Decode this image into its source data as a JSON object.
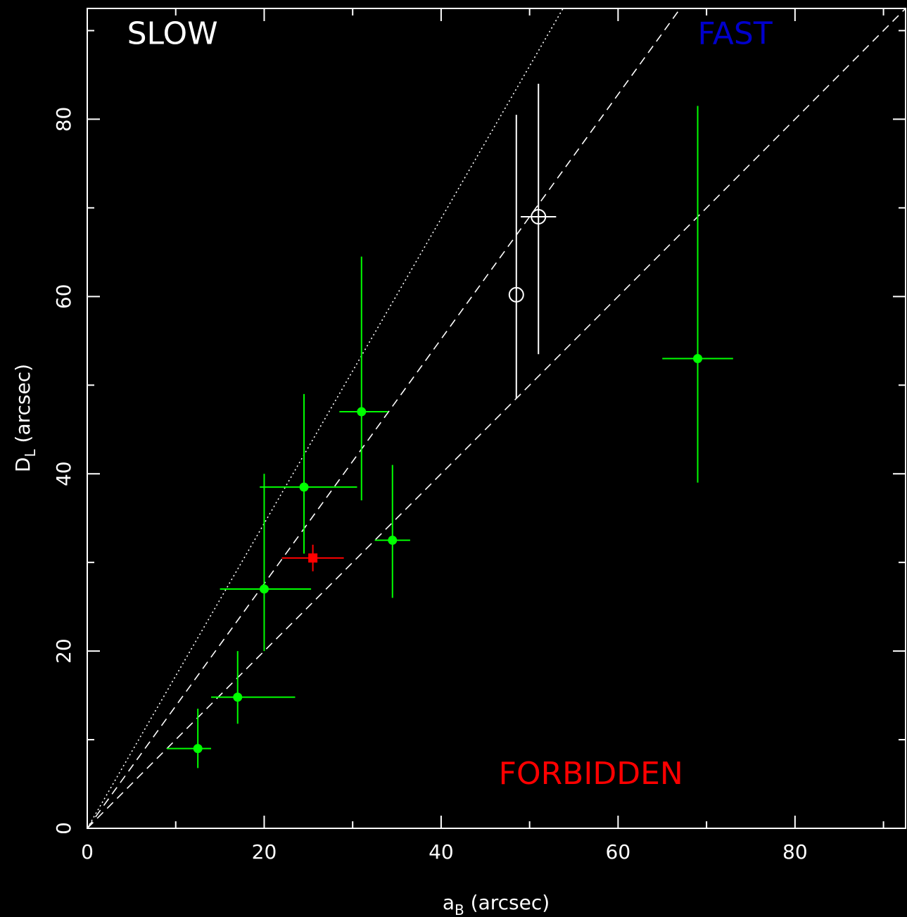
{
  "chart_data": {
    "type": "scatter",
    "xlabel": "a",
    "xlabel_sub": "B",
    "xlabel_unit": "(arcsec)",
    "ylabel": "D",
    "ylabel_sub": "L",
    "ylabel_unit": "(arcsec)",
    "xlim": [
      0,
      92.5
    ],
    "ylim": [
      0,
      92.5
    ],
    "x_ticks": [
      "0",
      "20",
      "40",
      "60",
      "80"
    ],
    "y_ticks": [
      "0",
      "20",
      "40",
      "60",
      "80"
    ],
    "background": "#000000",
    "annotations": [
      {
        "text": "SLOW",
        "x": 4.5,
        "y": 88.5,
        "color": "#ffffff"
      },
      {
        "text": "FAST",
        "x": 69.0,
        "y": 88.5,
        "color": "#0000cc"
      },
      {
        "text": "FORBIDDEN",
        "x": 46.5,
        "y": 5.0,
        "color": "#ff0000"
      }
    ],
    "reference_lines": [
      {
        "style": "dotted",
        "slope": 1.72,
        "color": "#ffffff"
      },
      {
        "style": "dashed",
        "slope": 1.38,
        "color": "#ffffff"
      },
      {
        "style": "dashed",
        "slope": 1.0,
        "color": "#ffffff"
      }
    ],
    "series": [
      {
        "marker": "filled-circle",
        "color": "#00ff00",
        "points": [
          {
            "x": 12.5,
            "y": 9.0,
            "xerr": [
              9.0,
              14.0
            ],
            "yerr": [
              6.8,
              13.5
            ]
          },
          {
            "x": 17.0,
            "y": 14.8,
            "xerr": [
              14.0,
              23.5
            ],
            "yerr": [
              11.8,
              20.0
            ]
          },
          {
            "x": 20.0,
            "y": 27.0,
            "xerr": [
              15.0,
              25.3
            ],
            "yerr": [
              20.0,
              40.0
            ]
          },
          {
            "x": 24.5,
            "y": 38.5,
            "xerr": [
              19.5,
              30.5
            ],
            "yerr": [
              31.0,
              49.0
            ]
          },
          {
            "x": 31.0,
            "y": 47.0,
            "xerr": [
              28.5,
              34.0
            ],
            "yerr": [
              37.0,
              64.5
            ]
          },
          {
            "x": 34.5,
            "y": 32.5,
            "xerr": [
              32.5,
              36.5
            ],
            "yerr": [
              26.0,
              41.0
            ]
          },
          {
            "x": 69.0,
            "y": 53.0,
            "xerr": [
              65.0,
              73.0
            ],
            "yerr": [
              39.0,
              81.5
            ]
          }
        ]
      },
      {
        "marker": "filled-square",
        "color": "#ff0000",
        "points": [
          {
            "x": 25.5,
            "y": 30.5,
            "xerr": [
              22.0,
              29.0
            ],
            "yerr": [
              29.0,
              32.0
            ]
          }
        ]
      },
      {
        "marker": "open-circle",
        "color": "#ffffff",
        "points": [
          {
            "x": 48.5,
            "y": 60.2,
            "xerr": [
              48.5,
              48.5
            ],
            "yerr": [
              48.5,
              80.5
            ]
          },
          {
            "x": 51.0,
            "y": 69.0,
            "xerr": [
              49.0,
              53.0
            ],
            "yerr": [
              53.5,
              84.0
            ]
          }
        ]
      }
    ]
  }
}
